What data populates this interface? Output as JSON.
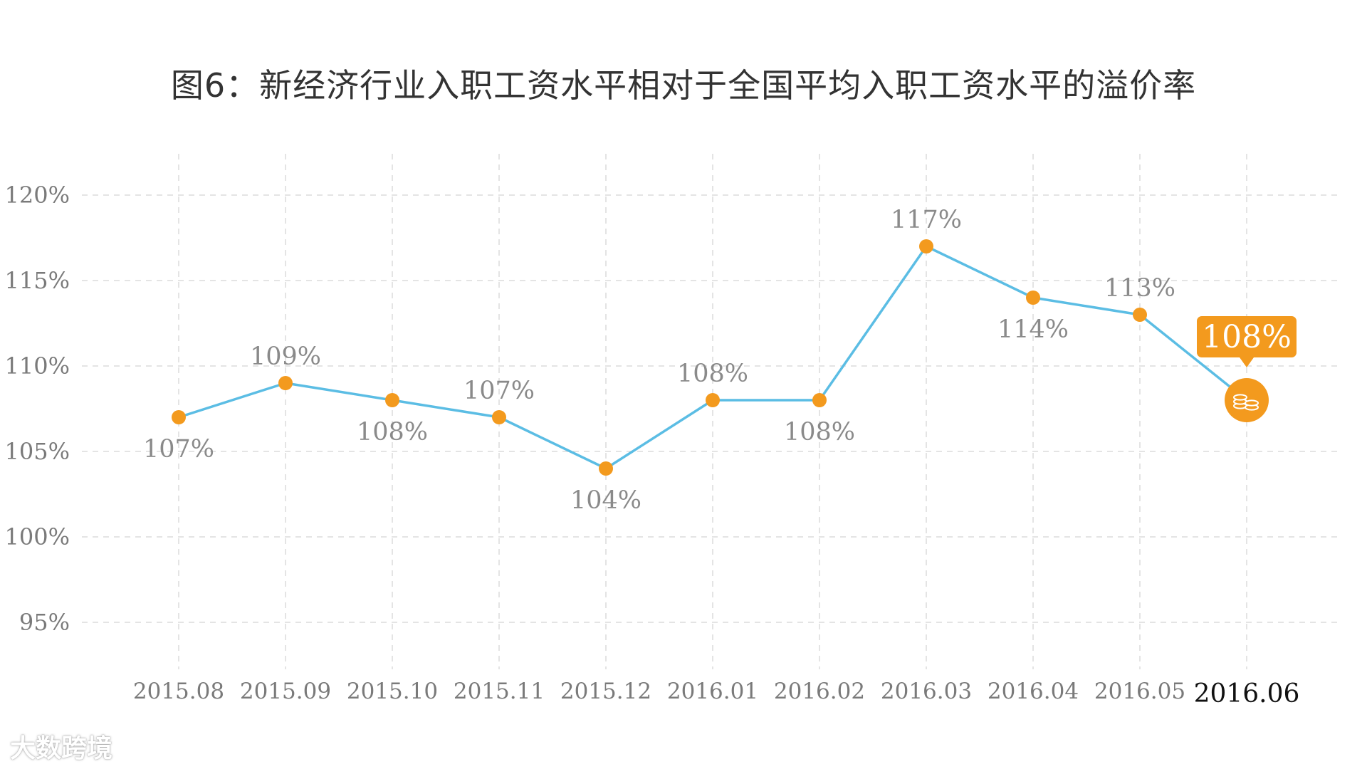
{
  "title": "图6：新经济行业入职工资水平相对于全国平均入职工资水平的溢价率",
  "watermark": "大数跨境",
  "chart_data": {
    "type": "line",
    "title": "图6：新经济行业入职工资水平相对于全国平均入职工资水平的溢价率",
    "xlabel": "",
    "ylabel": "",
    "categories": [
      "2015.08",
      "2015.09",
      "2015.10",
      "2015.11",
      "2015.12",
      "2016.01",
      "2016.02",
      "2016.03",
      "2016.04",
      "2016.05",
      "2016.06"
    ],
    "series": [
      {
        "values": [
          107,
          109,
          108,
          107,
          104,
          108,
          108,
          117,
          114,
          113,
          108
        ]
      }
    ],
    "data_labels": [
      "107%",
      "109%",
      "108%",
      "107%",
      "104%",
      "108%",
      "108%",
      "117%",
      "114%",
      "113%",
      "108%"
    ],
    "y_ticks": [
      95,
      100,
      105,
      110,
      115,
      120
    ],
    "y_tick_labels": [
      "95%",
      "100%",
      "105%",
      "110%",
      "115%",
      "120%"
    ],
    "ylim": [
      93,
      122
    ],
    "grid": true,
    "highlight_index": 10,
    "colors": {
      "line": "#5bbde4",
      "marker": "#f39a1e",
      "grid": "#dcdcdc"
    }
  }
}
